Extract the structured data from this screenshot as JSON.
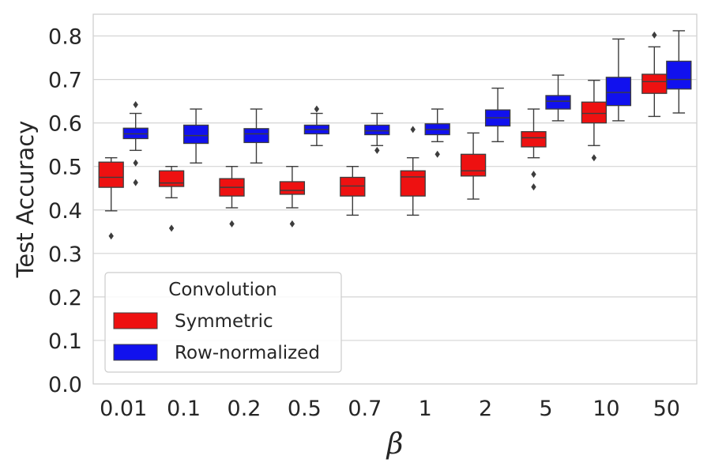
{
  "chart_data": {
    "type": "box",
    "title": "",
    "xlabel": "β",
    "ylabel": "Test Accuracy",
    "ylim": [
      0.0,
      0.85
    ],
    "yticks": [
      "0.0",
      "0.1",
      "0.2",
      "0.3",
      "0.4",
      "0.5",
      "0.6",
      "0.7",
      "0.8"
    ],
    "categories": [
      "0.01",
      "0.1",
      "0.2",
      "0.5",
      "0.7",
      "1",
      "2",
      "5",
      "10",
      "50"
    ],
    "grid": "horizontal",
    "legend": {
      "title": "Convolution",
      "placement": "lower-left"
    },
    "series": [
      {
        "name": "Symmetric",
        "color": "#ee1111",
        "boxes": [
          {
            "whisker_low": 0.398,
            "q1": 0.452,
            "median": 0.475,
            "q3": 0.51,
            "whisker_high": 0.52,
            "outliers": [
              0.34
            ]
          },
          {
            "whisker_low": 0.428,
            "q1": 0.454,
            "median": 0.462,
            "q3": 0.49,
            "whisker_high": 0.5,
            "outliers": [
              0.358
            ]
          },
          {
            "whisker_low": 0.405,
            "q1": 0.432,
            "median": 0.452,
            "q3": 0.472,
            "whisker_high": 0.5,
            "outliers": [
              0.368
            ]
          },
          {
            "whisker_low": 0.405,
            "q1": 0.436,
            "median": 0.445,
            "q3": 0.465,
            "whisker_high": 0.5,
            "outliers": [
              0.368
            ]
          },
          {
            "whisker_low": 0.388,
            "q1": 0.432,
            "median": 0.455,
            "q3": 0.475,
            "whisker_high": 0.5,
            "outliers": []
          },
          {
            "whisker_low": 0.388,
            "q1": 0.432,
            "median": 0.476,
            "q3": 0.49,
            "whisker_high": 0.52,
            "outliers": [
              0.585
            ]
          },
          {
            "whisker_low": 0.425,
            "q1": 0.478,
            "median": 0.49,
            "q3": 0.528,
            "whisker_high": 0.577,
            "outliers": []
          },
          {
            "whisker_low": 0.52,
            "q1": 0.545,
            "median": 0.566,
            "q3": 0.58,
            "whisker_high": 0.632,
            "outliers": [
              0.482,
              0.453
            ]
          },
          {
            "whisker_low": 0.548,
            "q1": 0.6,
            "median": 0.622,
            "q3": 0.648,
            "whisker_high": 0.698,
            "outliers": [
              0.52
            ]
          },
          {
            "whisker_low": 0.615,
            "q1": 0.668,
            "median": 0.695,
            "q3": 0.712,
            "whisker_high": 0.775,
            "outliers": [
              0.802
            ]
          }
        ]
      },
      {
        "name": "Row-normalized",
        "color": "#1111ee",
        "boxes": [
          {
            "whisker_low": 0.537,
            "q1": 0.564,
            "median": 0.575,
            "q3": 0.588,
            "whisker_high": 0.622,
            "outliers": [
              0.642,
              0.508,
              0.463
            ]
          },
          {
            "whisker_low": 0.508,
            "q1": 0.553,
            "median": 0.571,
            "q3": 0.595,
            "whisker_high": 0.632,
            "outliers": []
          },
          {
            "whisker_low": 0.508,
            "q1": 0.555,
            "median": 0.575,
            "q3": 0.587,
            "whisker_high": 0.632,
            "outliers": []
          },
          {
            "whisker_low": 0.548,
            "q1": 0.575,
            "median": 0.585,
            "q3": 0.595,
            "whisker_high": 0.622,
            "outliers": [
              0.632
            ]
          },
          {
            "whisker_low": 0.548,
            "q1": 0.573,
            "median": 0.582,
            "q3": 0.595,
            "whisker_high": 0.622,
            "outliers": [
              0.537
            ]
          },
          {
            "whisker_low": 0.557,
            "q1": 0.573,
            "median": 0.585,
            "q3": 0.598,
            "whisker_high": 0.632,
            "outliers": [
              0.528
            ]
          },
          {
            "whisker_low": 0.557,
            "q1": 0.593,
            "median": 0.612,
            "q3": 0.63,
            "whisker_high": 0.68,
            "outliers": []
          },
          {
            "whisker_low": 0.605,
            "q1": 0.632,
            "median": 0.65,
            "q3": 0.663,
            "whisker_high": 0.71,
            "outliers": []
          },
          {
            "whisker_low": 0.605,
            "q1": 0.64,
            "median": 0.67,
            "q3": 0.705,
            "whisker_high": 0.793,
            "outliers": []
          },
          {
            "whisker_low": 0.623,
            "q1": 0.678,
            "median": 0.7,
            "q3": 0.742,
            "whisker_high": 0.812,
            "outliers": []
          }
        ]
      }
    ]
  }
}
